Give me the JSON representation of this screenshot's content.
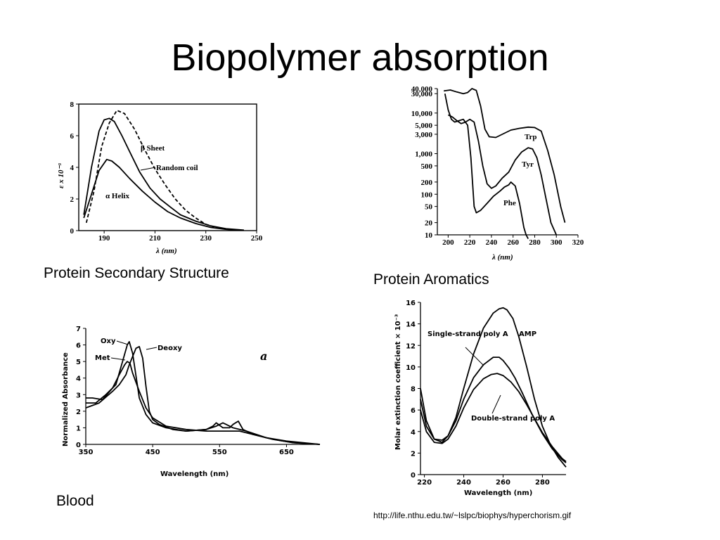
{
  "slide": {
    "title": "Biopolymer absorption",
    "captions": {
      "secondary": "Protein Secondary Structure",
      "aromatics": "Protein Aromatics",
      "blood": "Blood"
    },
    "source_url": "http://life.nthu.edu.tw/~lslpc/biophys/hyperchorism.gif"
  },
  "chart_data": [
    {
      "id": "secondary",
      "type": "line",
      "xlabel": "λ (nm)",
      "ylabel": "ε x 10⁻³",
      "xlim": [
        180,
        250
      ],
      "ylim": [
        0,
        8
      ],
      "x_ticks": [
        "190",
        "210",
        "230",
        "250"
      ],
      "y_ticks": [
        "0",
        "2",
        "4",
        "6",
        "8"
      ],
      "series": [
        {
          "name": "β Sheet",
          "style": "dashed",
          "x": [
            183,
            186,
            189,
            192,
            195,
            198,
            202,
            206,
            210,
            214,
            218,
            222,
            226,
            230,
            235,
            240
          ],
          "y": [
            0.5,
            2.5,
            5.3,
            6.8,
            7.6,
            7.4,
            6.4,
            5.1,
            3.9,
            2.9,
            2.0,
            1.3,
            0.8,
            0.4,
            0.15,
            0.05
          ]
        },
        {
          "name": "Random coil",
          "style": "solid",
          "x": [
            182,
            185,
            188,
            190,
            192,
            194,
            197,
            200,
            204,
            208,
            212,
            216,
            220,
            226,
            232,
            238,
            245
          ],
          "y": [
            1.0,
            4.0,
            6.3,
            7.0,
            7.1,
            6.9,
            6.0,
            5.0,
            3.7,
            2.7,
            2.0,
            1.5,
            1.0,
            0.6,
            0.3,
            0.12,
            0.03
          ]
        },
        {
          "name": "α Helix",
          "style": "solid",
          "x": [
            182,
            185,
            188,
            191,
            193,
            196,
            200,
            205,
            210,
            215,
            220,
            226,
            232,
            238,
            245
          ],
          "y": [
            0.8,
            2.3,
            3.8,
            4.5,
            4.4,
            4.0,
            3.3,
            2.5,
            1.8,
            1.2,
            0.8,
            0.45,
            0.2,
            0.08,
            0.02
          ]
        }
      ]
    },
    {
      "id": "aromatics",
      "type": "line",
      "xlabel": "λ (nm)",
      "ylabel": "",
      "xlim": [
        190,
        320
      ],
      "y_scale": "log",
      "ylim": [
        10,
        40000
      ],
      "x_ticks": [
        "200",
        "220",
        "240",
        "260",
        "280",
        "300",
        "320"
      ],
      "y_ticks": [
        "40,000",
        "30,000",
        "10,000",
        "5,000",
        "3,000",
        "1,000",
        "500",
        "200",
        "100",
        "50",
        "20",
        "10"
      ],
      "series": [
        {
          "name": "Trp",
          "x": [
            196,
            202,
            208,
            214,
            218,
            222,
            226,
            230,
            234,
            238,
            244,
            250,
            258,
            266,
            274,
            280,
            286,
            292,
            298,
            304,
            308
          ],
          "y": [
            35000,
            37000,
            33000,
            30000,
            32000,
            40000,
            36000,
            15000,
            4000,
            2600,
            2500,
            3000,
            3800,
            4200,
            4500,
            4400,
            3600,
            1200,
            300,
            50,
            20
          ]
        },
        {
          "name": "Tyr",
          "x": [
            200,
            204,
            208,
            212,
            216,
            220,
            224,
            228,
            232,
            236,
            240,
            244,
            250,
            256,
            262,
            268,
            274,
            278,
            282,
            286,
            290,
            295,
            300
          ],
          "y": [
            9000,
            8000,
            6500,
            5500,
            6000,
            7000,
            6000,
            2000,
            500,
            180,
            140,
            160,
            250,
            350,
            700,
            1100,
            1400,
            1300,
            800,
            300,
            90,
            20,
            10
          ]
        },
        {
          "name": "Phe",
          "x": [
            197,
            200,
            203,
            206,
            210,
            214,
            218,
            221,
            224,
            226,
            230,
            236,
            242,
            248,
            252,
            256,
            258,
            262,
            266,
            270,
            272,
            274
          ],
          "y": [
            30000,
            12000,
            7000,
            6000,
            6500,
            7000,
            5000,
            800,
            50,
            35,
            40,
            60,
            90,
            120,
            150,
            170,
            200,
            160,
            60,
            15,
            10,
            8
          ]
        }
      ]
    },
    {
      "id": "blood",
      "type": "line",
      "xlabel": "Wavelength (nm)",
      "ylabel": "Normalized Absorbance",
      "xlim": [
        350,
        700
      ],
      "ylim": [
        0,
        7
      ],
      "x_ticks": [
        "350",
        "450",
        "550",
        "650"
      ],
      "y_ticks": [
        "0",
        "1",
        "2",
        "3",
        "4",
        "5",
        "6",
        "7"
      ],
      "annotation": "a",
      "series": [
        {
          "name": "Oxy",
          "x": [
            350,
            365,
            380,
            395,
            405,
            412,
            415,
            420,
            430,
            440,
            450,
            470,
            500,
            530,
            540,
            545,
            555,
            565,
            570,
            578,
            585,
            600,
            630,
            660,
            700
          ],
          "y": [
            2.5,
            2.5,
            3.0,
            3.6,
            5.0,
            6.0,
            6.2,
            5.5,
            2.8,
            1.8,
            1.3,
            1.0,
            0.8,
            0.9,
            1.1,
            1.3,
            1.0,
            1.0,
            1.2,
            1.4,
            0.9,
            0.6,
            0.3,
            0.1,
            0.0
          ]
        },
        {
          "name": "Deoxy",
          "x": [
            350,
            370,
            390,
            400,
            410,
            415,
            420,
            425,
            430,
            435,
            440,
            445,
            450,
            460,
            480,
            500,
            530,
            545,
            555,
            560,
            570,
            590,
            620,
            650,
            700
          ],
          "y": [
            2.2,
            2.5,
            3.2,
            3.6,
            4.2,
            4.8,
            5.3,
            5.8,
            5.9,
            5.2,
            3.5,
            2.0,
            1.5,
            1.2,
            0.9,
            0.8,
            0.9,
            1.1,
            1.3,
            1.2,
            1.0,
            0.8,
            0.4,
            0.2,
            0.0
          ]
        },
        {
          "name": "Met",
          "x": [
            350,
            360,
            375,
            390,
            400,
            408,
            412,
            416,
            420,
            430,
            440,
            450,
            470,
            500,
            530,
            540,
            550,
            565,
            580,
            600,
            630,
            660,
            700
          ],
          "y": [
            2.8,
            2.8,
            2.7,
            3.4,
            4.2,
            4.8,
            5.0,
            4.9,
            4.3,
            3.2,
            2.2,
            1.6,
            1.1,
            0.9,
            0.8,
            0.8,
            0.8,
            0.8,
            0.8,
            0.6,
            0.3,
            0.1,
            0.0
          ]
        }
      ]
    },
    {
      "id": "nucleic",
      "type": "line",
      "xlabel": "Wavelength (nm)",
      "ylabel": "Molar extinction coefficient × 10⁻³",
      "xlim": [
        218,
        292
      ],
      "ylim": [
        0,
        16
      ],
      "x_ticks": [
        "220",
        "240",
        "260",
        "280"
      ],
      "y_ticks": [
        "0",
        "2",
        "4",
        "6",
        "8",
        "10",
        "12",
        "14",
        "16"
      ],
      "series": [
        {
          "name": "AMP",
          "x": [
            218,
            221,
            225,
            229,
            232,
            236,
            240,
            245,
            250,
            255,
            258,
            260,
            262,
            265,
            268,
            272,
            276,
            280,
            284,
            288,
            292
          ],
          "y": [
            8.0,
            5.0,
            3.3,
            3.0,
            3.6,
            5.3,
            8.0,
            11.2,
            13.6,
            15.0,
            15.4,
            15.5,
            15.3,
            14.5,
            12.8,
            10.0,
            7.0,
            4.5,
            2.8,
            1.6,
            0.7
          ]
        },
        {
          "name": "Single-strand poly A",
          "x": [
            218,
            221,
            225,
            229,
            232,
            236,
            240,
            245,
            250,
            255,
            258,
            260,
            263,
            266,
            270,
            275,
            280,
            285,
            290,
            292
          ],
          "y": [
            7.0,
            4.5,
            3.3,
            3.2,
            3.6,
            5.0,
            7.0,
            9.0,
            10.2,
            10.9,
            10.9,
            10.6,
            9.9,
            9.0,
            7.5,
            5.5,
            3.8,
            2.4,
            1.4,
            1.1
          ]
        },
        {
          "name": "Double-strand poly A",
          "x": [
            218,
            221,
            225,
            229,
            232,
            236,
            240,
            245,
            250,
            254,
            257,
            260,
            264,
            268,
            272,
            276,
            280,
            285,
            290,
            292
          ],
          "y": [
            6.0,
            4.0,
            3.0,
            2.9,
            3.3,
            4.5,
            6.2,
            7.9,
            8.9,
            9.3,
            9.4,
            9.2,
            8.6,
            7.7,
            6.5,
            5.2,
            3.9,
            2.6,
            1.5,
            1.2
          ]
        }
      ]
    }
  ]
}
